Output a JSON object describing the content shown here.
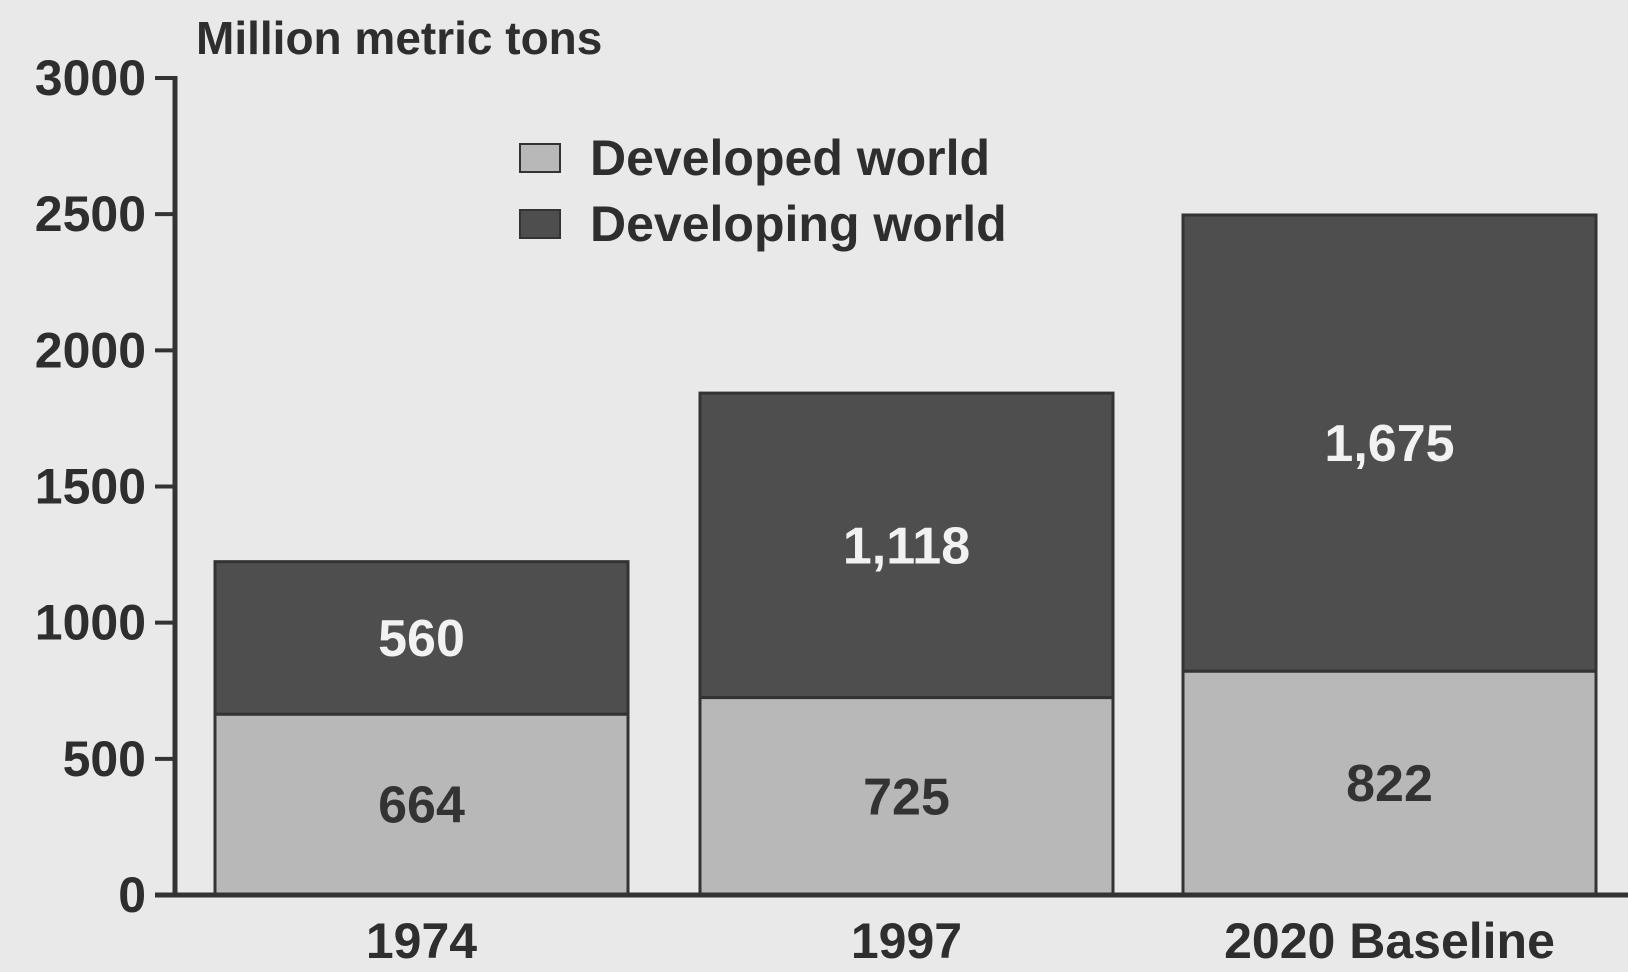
{
  "chart_data": {
    "type": "bar",
    "stacked": true,
    "title": "",
    "ylabel": "Million metric tons",
    "xlabel": "",
    "categories": [
      "1974",
      "1997",
      "2020 Baseline"
    ],
    "series": [
      {
        "name": "Developed world",
        "color": "#b8b8b8",
        "label_color": "#333333",
        "values": [
          664,
          725,
          822
        ],
        "labels": [
          "664",
          "725",
          "822"
        ]
      },
      {
        "name": "Developing world",
        "color": "#4e4e4e",
        "label_color": "#f2f2f2",
        "values": [
          560,
          1118,
          1675
        ],
        "labels": [
          "560",
          "1,118",
          "1,675"
        ]
      }
    ],
    "ylim": [
      0,
      3000
    ],
    "yticks": [
      0,
      500,
      1000,
      1500,
      2000,
      2500,
      3000
    ],
    "grid": false,
    "legend_position": "top-left"
  }
}
